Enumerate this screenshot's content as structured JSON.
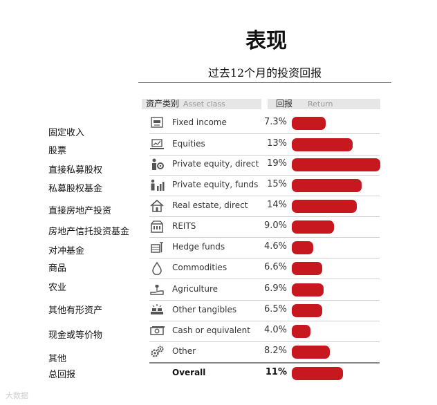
{
  "chart_data": {
    "type": "bar",
    "title": "表现",
    "subtitle": "过去12个月的投资回报",
    "header": {
      "class_cn": "资产类别",
      "class_en": "Asset class",
      "return_cn": "回报",
      "return_en": "Return"
    },
    "categories_cn": [
      "固定收入",
      "股票",
      "直接私募股权",
      "私募股权基金",
      "直接房地产投资",
      "房地产信托投资基金",
      "对冲基金",
      "商品",
      "农业",
      "其他有形资产",
      "现金或等价物",
      "其他",
      "总回报"
    ],
    "categories": [
      "Fixed income",
      "Equities",
      "Private equity, direct",
      "Private equity, funds",
      "Real estate, direct",
      "REITS",
      "Hedge funds",
      "Commodities",
      "Agriculture",
      "Other tangibles",
      "Cash or equivalent",
      "Other",
      "Overall"
    ],
    "value_labels": [
      "7.3%",
      "13%",
      "19%",
      "15%",
      "14%",
      "9.0%",
      "4.6%",
      "6.6%",
      "6.9%",
      "6.5%",
      "4.0%",
      "8.2%",
      "11%"
    ],
    "values": [
      7.3,
      13,
      19,
      15,
      14,
      9.0,
      4.6,
      6.6,
      6.9,
      6.5,
      4.0,
      8.2,
      11
    ],
    "icons": [
      "atm-icon",
      "laptop-chart-icon",
      "person-gear-icon",
      "people-chart-icon",
      "house-icon",
      "building-icon",
      "hedge-icon",
      "droplet-icon",
      "plant-hand-icon",
      "gold-bars-icon",
      "cash-icon",
      "gears-icon",
      "none"
    ],
    "bar_color": "#c8181f"
  },
  "watermark": "大数据"
}
